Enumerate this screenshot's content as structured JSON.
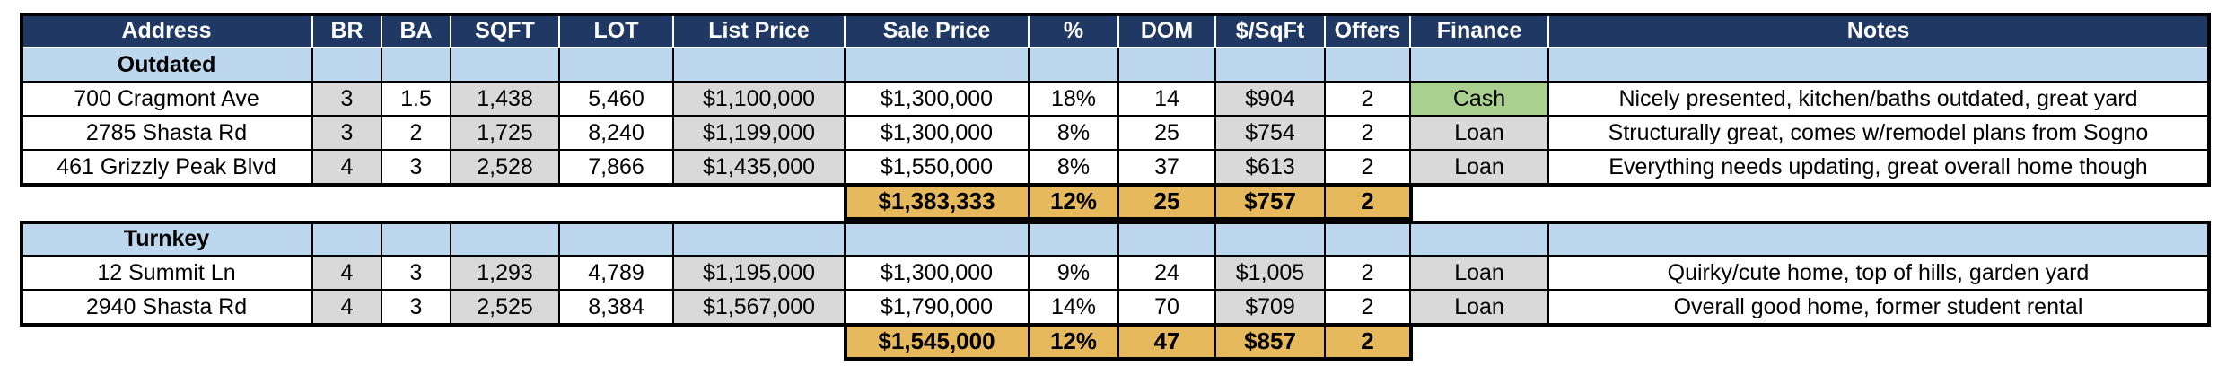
{
  "table": {
    "header": [
      "Address",
      "BR",
      "BA",
      "SQFT",
      "LOT",
      "List Price",
      "Sale Price",
      "%",
      "DOM",
      "$/SqFt",
      "Offers",
      "Finance",
      "Notes"
    ],
    "groups": [
      {
        "label": "Outdated",
        "rows": [
          [
            "700 Cragmont Ave",
            "3",
            "1.5",
            "1,438",
            "5,460",
            "$1,100,000",
            "$1,300,000",
            "18%",
            "14",
            "$904",
            "2",
            "Cash",
            "Nicely presented, kitchen/baths outdated, great yard"
          ],
          [
            "2785 Shasta Rd",
            "3",
            "2",
            "1,725",
            "8,240",
            "$1,199,000",
            "$1,300,000",
            "8%",
            "25",
            "$754",
            "2",
            "Loan",
            "Structurally great, comes w/remodel plans from Sogno"
          ],
          [
            "461 Grizzly Peak Blvd",
            "4",
            "3",
            "2,528",
            "7,866",
            "$1,435,000",
            "$1,550,000",
            "8%",
            "37",
            "$613",
            "2",
            "Loan",
            "Everything needs updating, great overall home though"
          ]
        ],
        "summary": [
          "$1,383,333",
          "12%",
          "25",
          "$757",
          "2"
        ]
      },
      {
        "label": "Turnkey",
        "rows": [
          [
            "12 Summit Ln",
            "4",
            "3",
            "1,293",
            "4,789",
            "$1,195,000",
            "$1,300,000",
            "9%",
            "24",
            "$1,005",
            "2",
            "Loan",
            "Quirky/cute home, top of hills, garden yard"
          ],
          [
            "2940 Shasta Rd",
            "4",
            "3",
            "2,525",
            "8,384",
            "$1,567,000",
            "$1,790,000",
            "14%",
            "70",
            "$709",
            "2",
            "Loan",
            "Overall good home, former student rental"
          ]
        ],
        "summary": [
          "$1,545,000",
          "12%",
          "47",
          "$857",
          "2"
        ]
      }
    ]
  }
}
